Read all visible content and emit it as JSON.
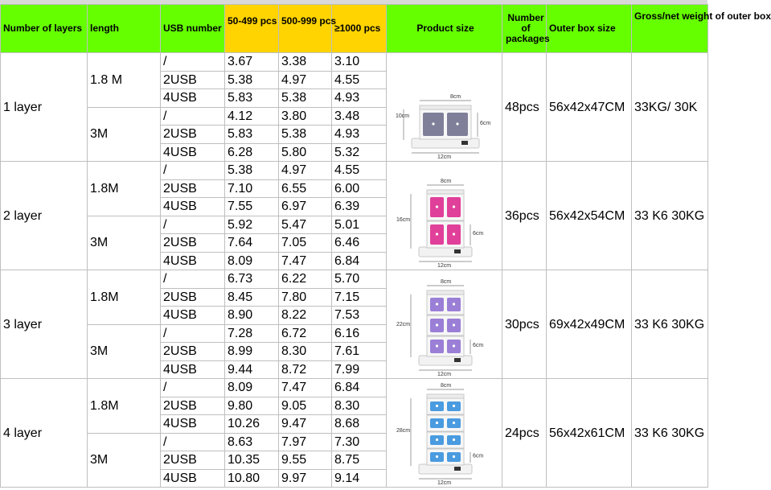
{
  "headers": {
    "layers": "Number of layers",
    "length": "length",
    "usb": "USB number",
    "p1": "50-499 pcs",
    "p2": "500-999 pcs",
    "p3": "≥1000 pcs",
    "product_size": "Product size",
    "packages": "Number of packages",
    "outer_box": "Outer box size",
    "weight": "Gross/net weight of outer box"
  },
  "colors": {
    "header_green": "#66ff00",
    "price_header_yellow": "#ffd400",
    "grid": "#bfbfbf"
  },
  "groups": [
    {
      "layer": "1 layer",
      "packages": "48pcs",
      "outer_box": "56x42x47CM",
      "weight": "33KG/ 30K",
      "image": {
        "name": "power-strip-1-layer-image",
        "dims": [
          "10cm",
          "8cm",
          "6cm",
          "12cm"
        ],
        "accent": "#7f7f9a"
      },
      "lengths": [
        {
          "length": "1.8 M",
          "rows": [
            {
              "usb": "/",
              "p1": "3.67",
              "p2": "3.38",
              "p3": "3.10"
            },
            {
              "usb": "2USB",
              "p1": "5.38",
              "p2": "4.97",
              "p3": "4.55"
            },
            {
              "usb": "4USB",
              "p1": "5.83",
              "p2": "5.38",
              "p3": "4.93"
            }
          ]
        },
        {
          "length": "3M",
          "rows": [
            {
              "usb": "/",
              "p1": "4.12",
              "p2": "3.80",
              "p3": "3.48"
            },
            {
              "usb": "2USB",
              "p1": "5.83",
              "p2": "5.38",
              "p3": "4.93"
            },
            {
              "usb": "4USB",
              "p1": "6.28",
              "p2": "5.80",
              "p3": "5.32"
            }
          ]
        }
      ]
    },
    {
      "layer": "2 layer",
      "packages": "36pcs",
      "outer_box": "56x42x54CM",
      "weight": "33 K6 30KG",
      "image": {
        "name": "power-strip-2-layer-image",
        "dims": [
          "8cm",
          "16cm",
          "6cm",
          "12cm"
        ],
        "accent": "#e0409a"
      },
      "lengths": [
        {
          "length": "1.8M",
          "rows": [
            {
              "usb": "/",
              "p1": "5.38",
              "p2": "4.97",
              "p3": "4.55"
            },
            {
              "usb": "2USB",
              "p1": "7.10",
              "p2": "6.55",
              "p3": "6.00"
            },
            {
              "usb": "4USB",
              "p1": "7.55",
              "p2": "6.97",
              "p3": "6.39"
            }
          ]
        },
        {
          "length": "3M",
          "rows": [
            {
              "usb": "/",
              "p1": "5.92",
              "p2": "5.47",
              "p3": "5.01"
            },
            {
              "usb": "2USB",
              "p1": "7.64",
              "p2": "7.05",
              "p3": "6.46"
            },
            {
              "usb": "4USB",
              "p1": "8.09",
              "p2": "7.47",
              "p3": "6.84"
            }
          ]
        }
      ]
    },
    {
      "layer": "3 layer",
      "packages": "30pcs",
      "outer_box": "69x42x49CM",
      "weight": "33 K6 30KG",
      "image": {
        "name": "power-strip-3-layer-image",
        "dims": [
          "8cm",
          "22cm",
          "6cm",
          "12cm"
        ],
        "accent": "#9b7fd6"
      },
      "lengths": [
        {
          "length": "1.8M",
          "rows": [
            {
              "usb": "/",
              "p1": "6.73",
              "p2": "6.22",
              "p3": "5.70"
            },
            {
              "usb": "2USB",
              "p1": "8.45",
              "p2": "7.80",
              "p3": "7.15"
            },
            {
              "usb": "4USB",
              "p1": "8.90",
              "p2": "8.22",
              "p3": "7.53"
            }
          ]
        },
        {
          "length": "3M",
          "rows": [
            {
              "usb": "/",
              "p1": "7.28",
              "p2": "6.72",
              "p3": "6.16"
            },
            {
              "usb": "2USB",
              "p1": "8.99",
              "p2": "8.30",
              "p3": "7.61"
            },
            {
              "usb": "4USB",
              "p1": "9.44",
              "p2": "8.72",
              "p3": "7.99"
            }
          ]
        }
      ]
    },
    {
      "layer": "4 layer",
      "packages": "24pcs",
      "outer_box": "56x42x61CM",
      "weight": "33 K6 30KG",
      "image": {
        "name": "power-strip-4-layer-image",
        "dims": [
          "8cm",
          "28cm",
          "6cm",
          "12cm"
        ],
        "accent": "#4a9be0"
      },
      "lengths": [
        {
          "length": "1.8M",
          "rows": [
            {
              "usb": "/",
              "p1": "8.09",
              "p2": "7.47",
              "p3": "6.84"
            },
            {
              "usb": "2USB",
              "p1": "9.80",
              "p2": "9.05",
              "p3": "8.30"
            },
            {
              "usb": "4USB",
              "p1": "10.26",
              "p2": "9.47",
              "p3": "8.68"
            }
          ]
        },
        {
          "length": "3M",
          "rows": [
            {
              "usb": "/",
              "p1": "8.63",
              "p2": "7.97",
              "p3": "7.30"
            },
            {
              "usb": "2USB",
              "p1": "10.35",
              "p2": "9.55",
              "p3": "8.75"
            },
            {
              "usb": "4USB",
              "p1": "10.80",
              "p2": "9.97",
              "p3": "9.14"
            }
          ]
        }
      ]
    }
  ]
}
